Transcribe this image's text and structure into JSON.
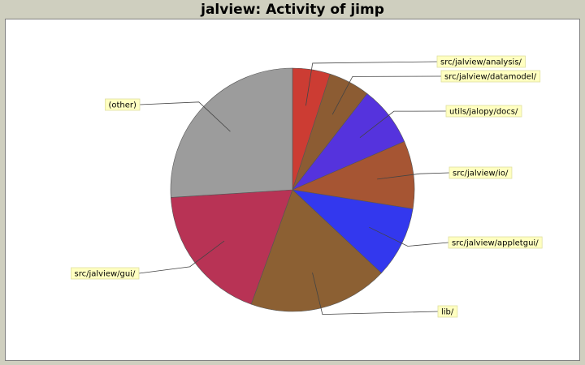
{
  "chart_data": {
    "type": "pie",
    "title": "jalview: Activity of jimp",
    "slices": [
      {
        "label": "src/jalview/analysis/",
        "value": 5.0,
        "color": "#cc3c33"
      },
      {
        "label": "src/jalview/datamodel/",
        "value": 5.5,
        "color": "#8c5c33"
      },
      {
        "label": "utils/jalopy/docs/",
        "value": 8.0,
        "color": "#5533dd"
      },
      {
        "label": "src/jalview/io/",
        "value": 9.0,
        "color": "#a65533"
      },
      {
        "label": "src/jalview/appletgui/",
        "value": 9.5,
        "color": "#3338ee"
      },
      {
        "label": "lib/",
        "value": 18.5,
        "color": "#8c6033"
      },
      {
        "label": "src/jalview/gui/",
        "value": 18.5,
        "color": "#b83355"
      },
      {
        "label": "(other)",
        "value": 26.0,
        "color": "#9c9c9c"
      }
    ]
  }
}
